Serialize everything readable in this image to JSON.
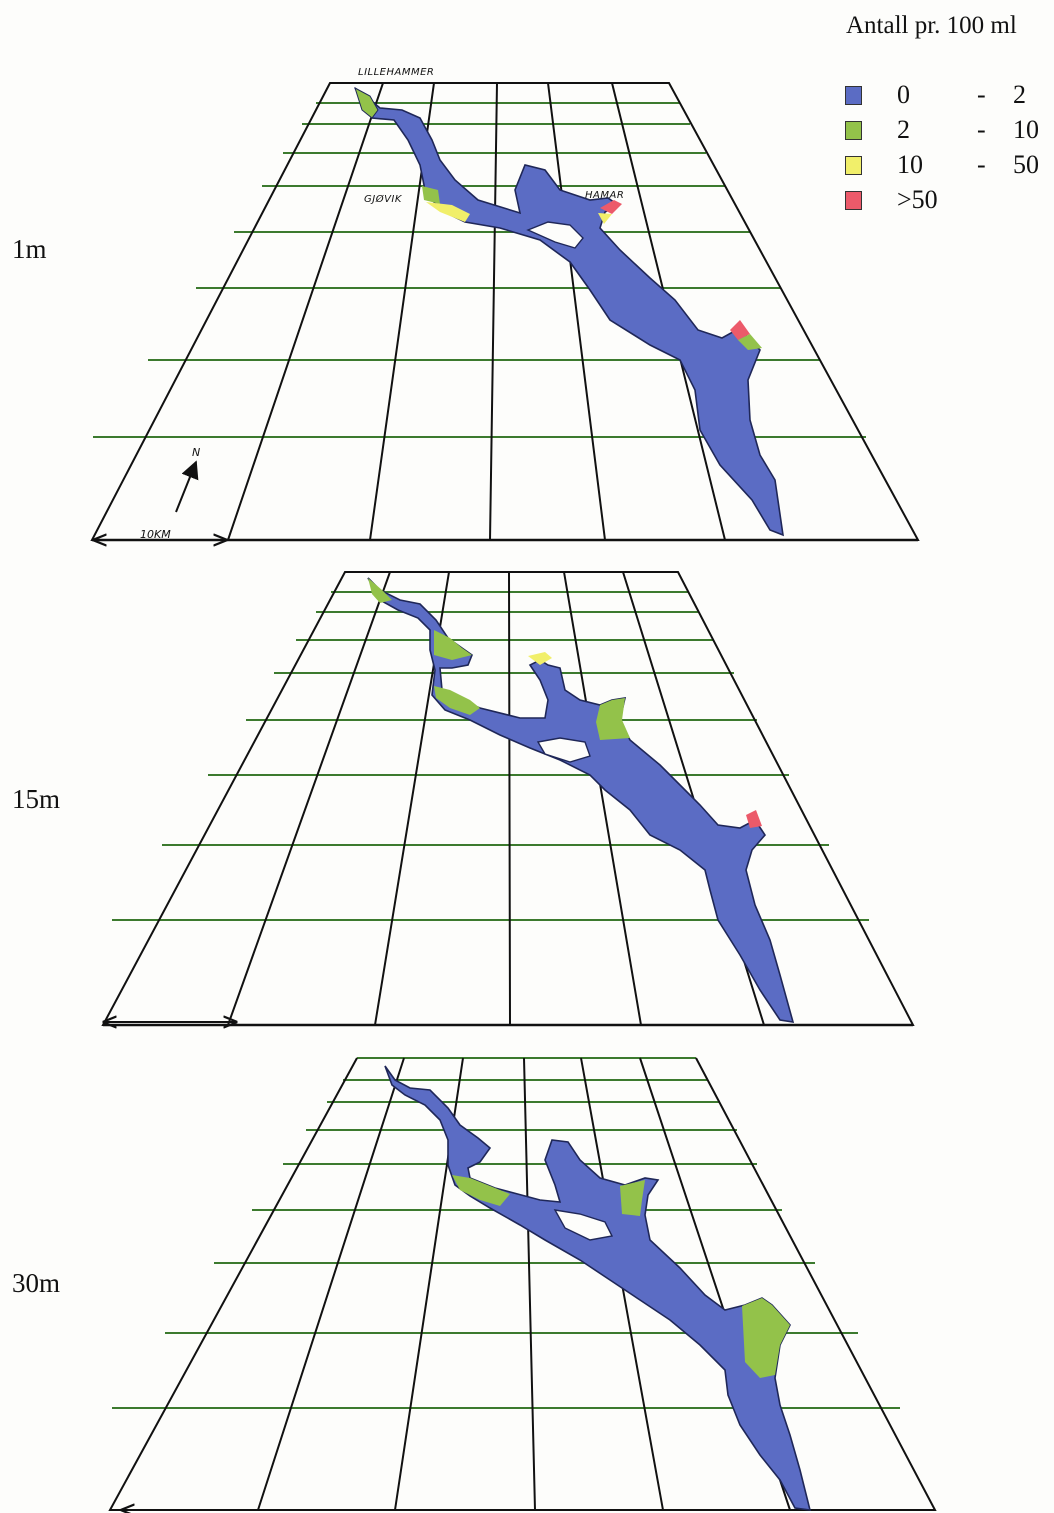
{
  "legend": {
    "title": "Antall pr. 100 ml",
    "items": [
      {
        "low": "0",
        "dash": "-",
        "high": "2",
        "color": "#5b6cc4"
      },
      {
        "low": "2",
        "dash": "-",
        "high": "10",
        "color": "#93c24a"
      },
      {
        "low": "10",
        "dash": "-",
        "high": "50",
        "color": "#f1ef6a"
      },
      {
        "low": ">50",
        "dash": "",
        "high": "",
        "color": "#ec5a6a"
      }
    ]
  },
  "panels": [
    {
      "depth_label": "1m"
    },
    {
      "depth_label": "15m"
    },
    {
      "depth_label": "30m"
    }
  ],
  "places": {
    "lillehammer": "LILLEHAMMER",
    "gjovik": "GJØVIK",
    "hamar": "HAMAR"
  },
  "north_label": "N",
  "scale_label": "10KM",
  "colors": {
    "water_0_2": "#5b6cc4",
    "water_2_10": "#93c24a",
    "water_10_50": "#f1ef6a",
    "water_over_50": "#ec5a6a",
    "grid_horizontal": "#3c7a2e",
    "grid_lines": "#111111"
  }
}
